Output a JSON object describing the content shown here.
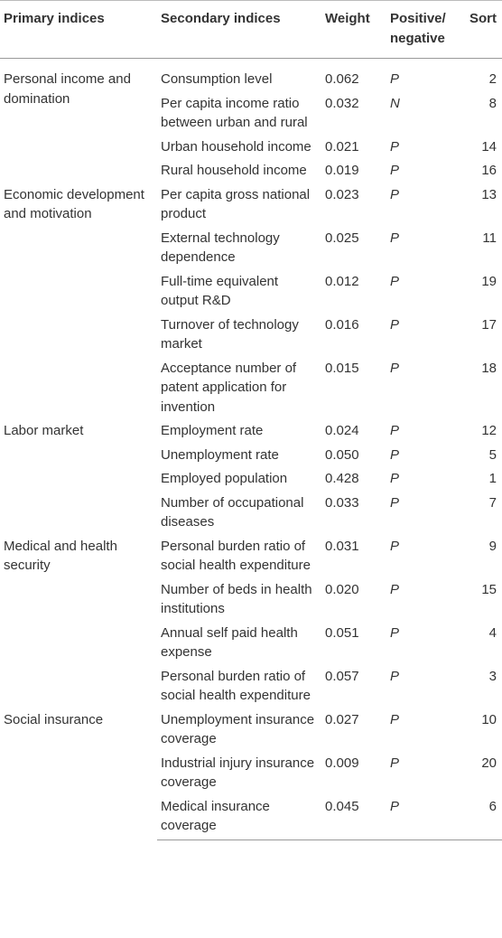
{
  "table": {
    "columns": [
      "Primary indices",
      "Secondary indices",
      "Weight",
      "Positive/ negative",
      "Sort"
    ],
    "groups": [
      {
        "primary": "Personal income and domination",
        "rows": [
          [
            "Consumption level",
            "0.062",
            "P",
            2
          ],
          [
            "Per capita income ratio between urban and rural",
            "0.032",
            "N",
            8
          ],
          [
            "Urban household income",
            "0.021",
            "P",
            14
          ],
          [
            "Rural household income",
            "0.019",
            "P",
            16
          ]
        ]
      },
      {
        "primary": "Economic development and motivation",
        "rows": [
          [
            "Per capita gross national product",
            "0.023",
            "P",
            13
          ],
          [
            "External technology dependence",
            "0.025",
            "P",
            11
          ],
          [
            "Full-time equivalent output R&D",
            "0.012",
            "P",
            19
          ],
          [
            "Turnover of technology market",
            "0.016",
            "P",
            17
          ],
          [
            "Acceptance number of patent application for invention",
            "0.015",
            "P",
            18
          ]
        ]
      },
      {
        "primary": "Labor market",
        "rows": [
          [
            "Employment rate",
            "0.024",
            "P",
            12
          ],
          [
            "Unemployment rate",
            "0.050",
            "P",
            5
          ],
          [
            "Employed population",
            "0.428",
            "P",
            1
          ],
          [
            "Number of occupational diseases",
            "0.033",
            "P",
            7
          ]
        ]
      },
      {
        "primary": "Medical and health security",
        "rows": [
          [
            "Personal burden ratio of social health expenditure",
            "0.031",
            "P",
            9
          ],
          [
            "Number of beds in health institutions",
            "0.020",
            "P",
            15
          ],
          [
            "Annual self paid health expense",
            "0.051",
            "P",
            4
          ],
          [
            "Personal burden ratio of social health expenditure",
            "0.057",
            "P",
            3
          ]
        ]
      },
      {
        "primary": "Social insurance",
        "rows": [
          [
            "Unemployment insurance coverage",
            "0.027",
            "P",
            10
          ],
          [
            "Industrial injury insurance coverage",
            "0.009",
            "P",
            20
          ],
          [
            "Medical insurance coverage",
            "0.045",
            "P",
            6
          ]
        ]
      }
    ]
  }
}
